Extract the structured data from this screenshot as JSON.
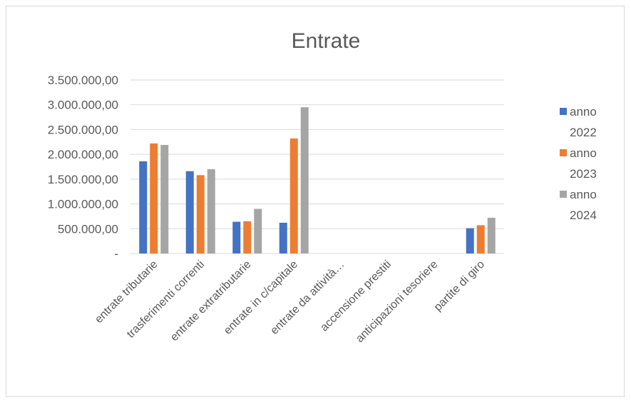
{
  "chart_data": {
    "type": "bar",
    "title": "Entrate",
    "categories": [
      "entrate tributarie",
      "trasferimenti correnti",
      "entrate extratributarie",
      "entrate in c/capitale",
      "entrate da attività…",
      "accensione prestiti",
      "anticipazioni tesoriere",
      "partite di giro"
    ],
    "series": [
      {
        "name": "anno 2022",
        "legend_lines": [
          "anno",
          "2022"
        ],
        "color": "#4472c4",
        "values": [
          1860000,
          1660000,
          640000,
          620000,
          0,
          0,
          0,
          510000
        ]
      },
      {
        "name": "anno 2023",
        "legend_lines": [
          "anno",
          "2023"
        ],
        "color": "#ed7d31",
        "values": [
          2220000,
          1580000,
          650000,
          2320000,
          0,
          0,
          0,
          570000
        ]
      },
      {
        "name": "anno 2024",
        "legend_lines": [
          "anno",
          "2024"
        ],
        "color": "#a5a5a5",
        "values": [
          2190000,
          1700000,
          900000,
          2950000,
          0,
          0,
          0,
          720000
        ]
      }
    ],
    "ylim": [
      0,
      3500000
    ],
    "yticks": [
      0,
      500000,
      1000000,
      1500000,
      2000000,
      2500000,
      3000000,
      3500000
    ],
    "ytick_labels": [
      "-",
      "500.000,00",
      "1.000.000,00",
      "1.500.000,00",
      "2.000.000,00",
      "2.500.000,00",
      "3.000.000,00",
      "3.500.000,00"
    ],
    "grid": true,
    "legend_position": "right",
    "gridline_color": "#d9d9d9",
    "text_color": "#595959"
  }
}
